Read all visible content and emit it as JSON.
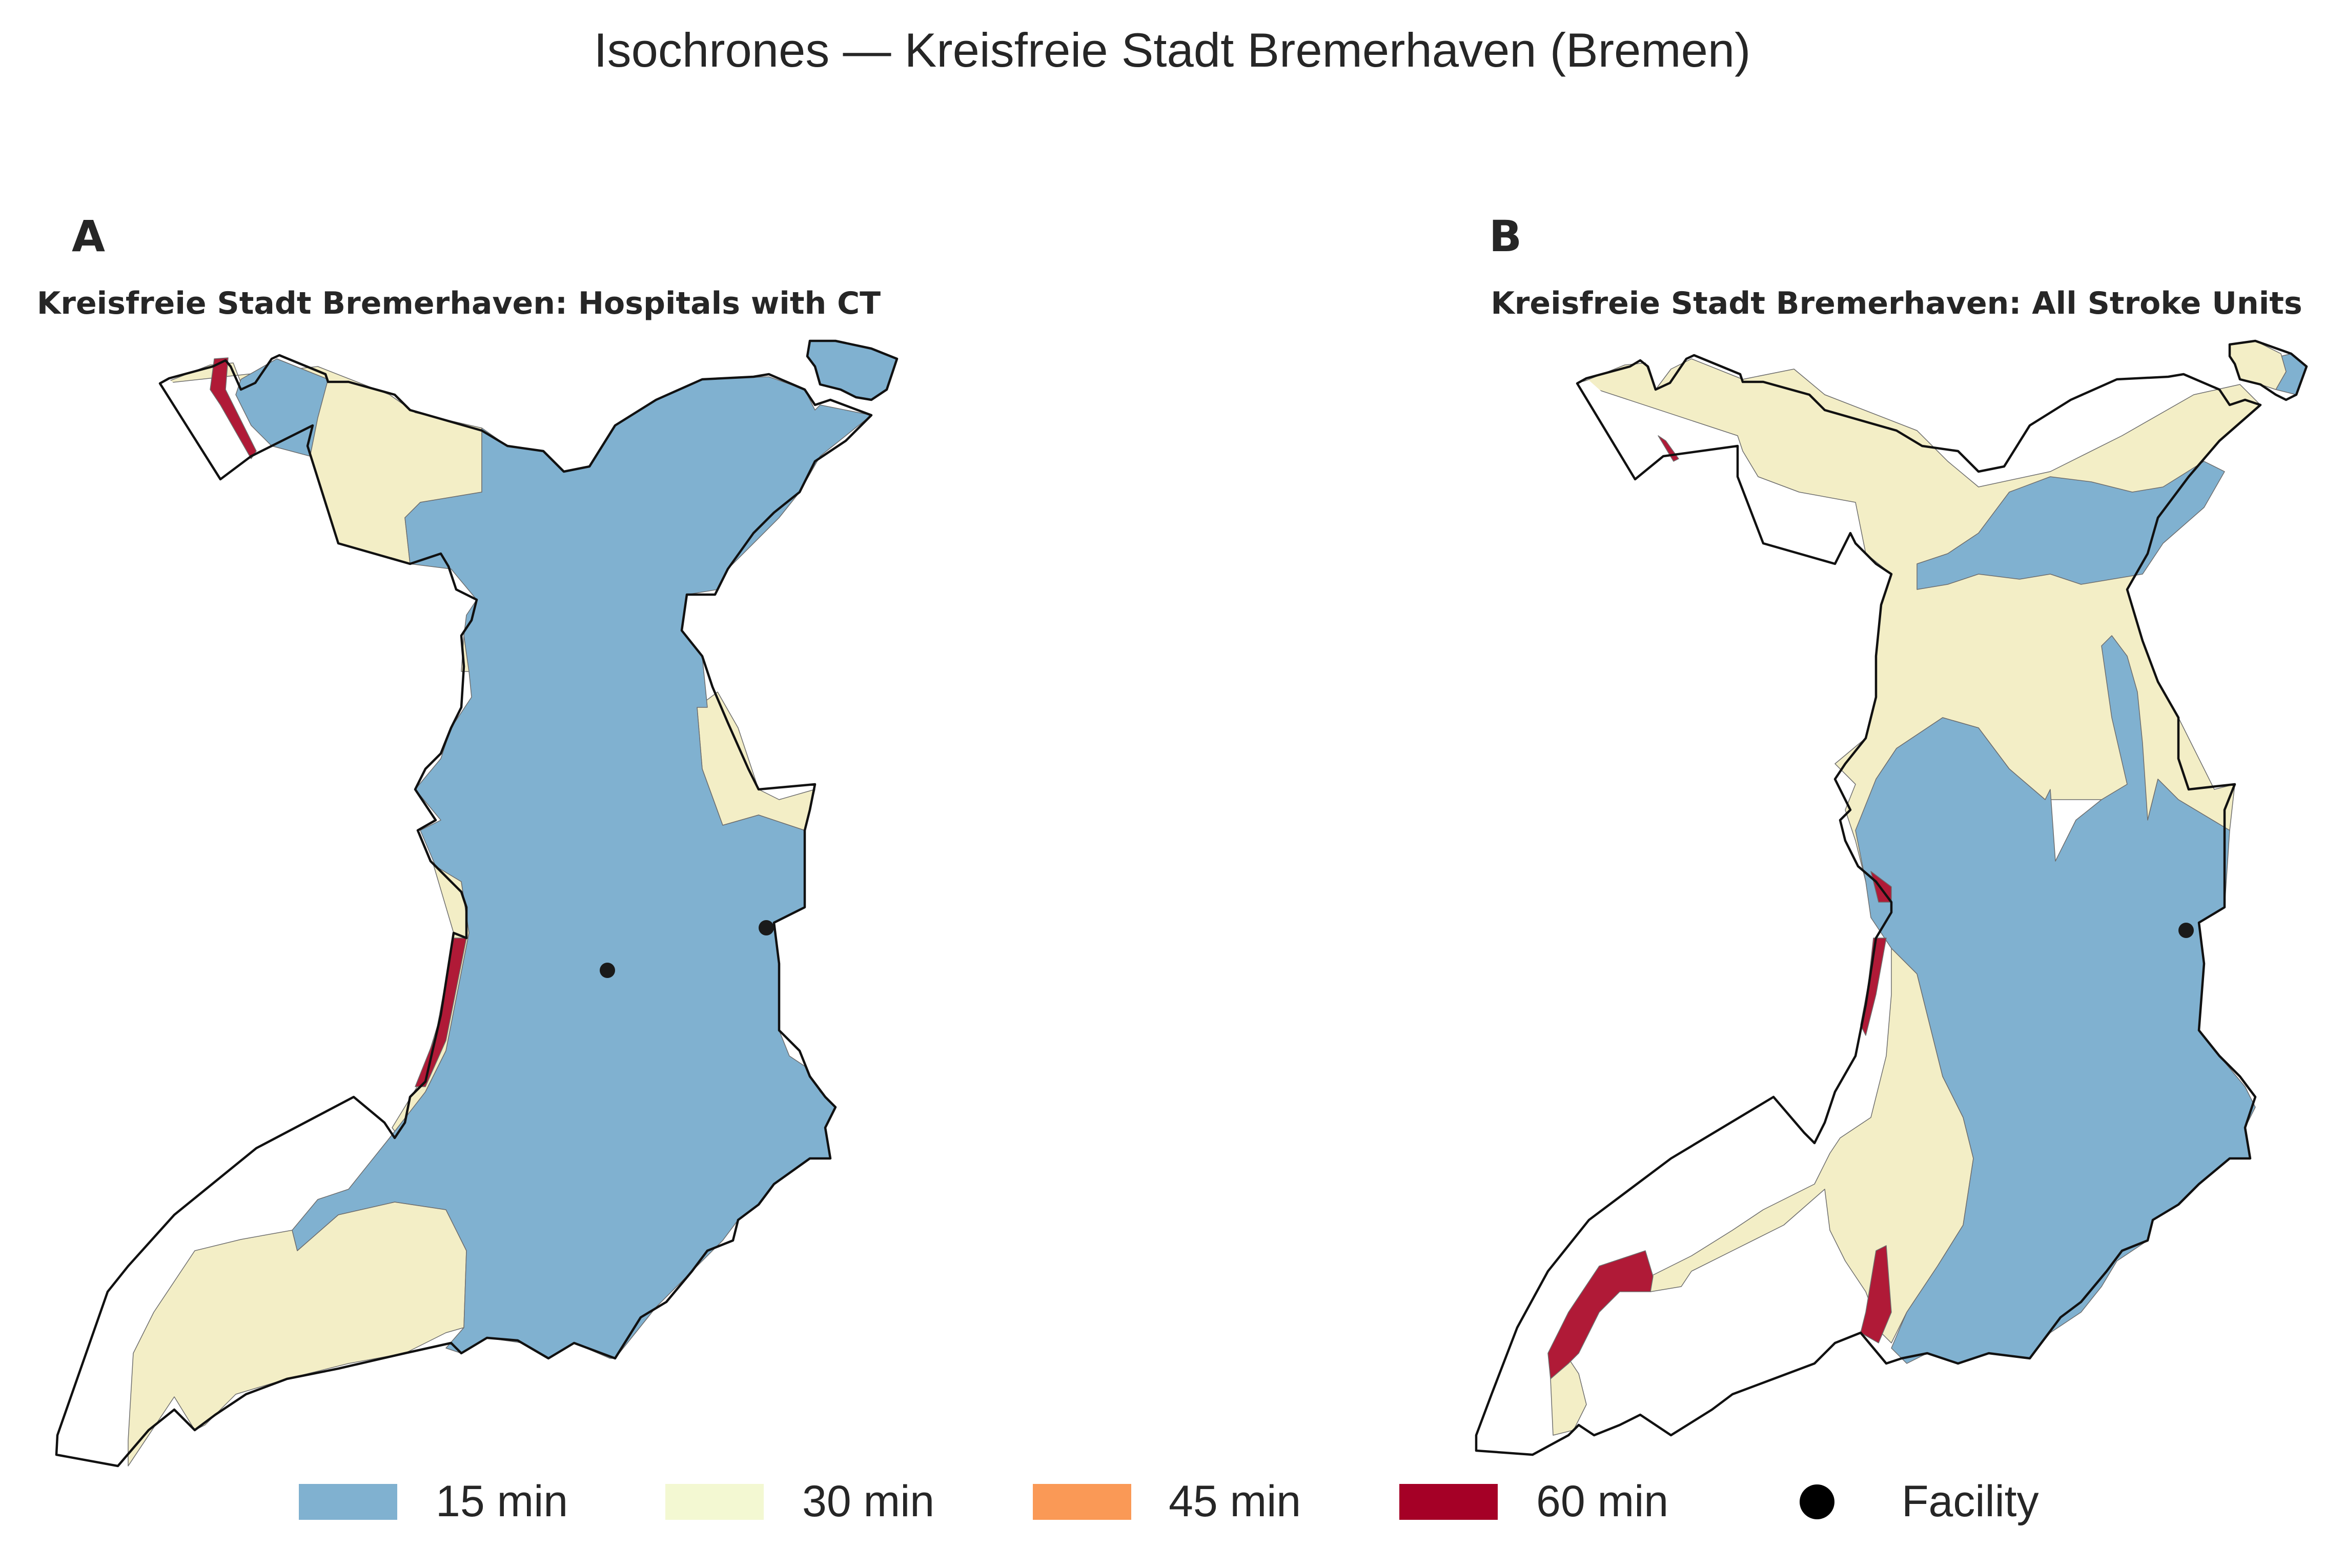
{
  "figure_title": "Isochrones — Kreisfreie Stadt Bremerhaven (Bremen)",
  "colors": {
    "15 min": "#80b1d0",
    "30 min": "#f3eec6",
    "45 min": "#fa9956",
    "60 min": "#b01a37",
    "outline": "#111111",
    "facility": "#1a1a1a",
    "background": "#ffffff"
  },
  "panels": [
    {
      "letter": "A",
      "title": "Kreisfreie Stadt Bremerhaven: Hospitals with CT",
      "facilities": 2
    },
    {
      "letter": "B",
      "title": "Kreisfreie Stadt Bremerhaven: All Stroke Units",
      "facilities": 1
    }
  ],
  "legend": {
    "items": [
      {
        "label": "15 min",
        "kind": "patch",
        "color": "#80b1d0"
      },
      {
        "label": "30 min",
        "kind": "patch",
        "color": "#f3eec6"
      },
      {
        "label": "45 min",
        "kind": "patch",
        "color": "#fa9956"
      },
      {
        "label": "60 min",
        "kind": "patch",
        "color": "#b01a37"
      },
      {
        "label": "Facility",
        "kind": "marker",
        "color": "#000000"
      }
    ]
  }
}
